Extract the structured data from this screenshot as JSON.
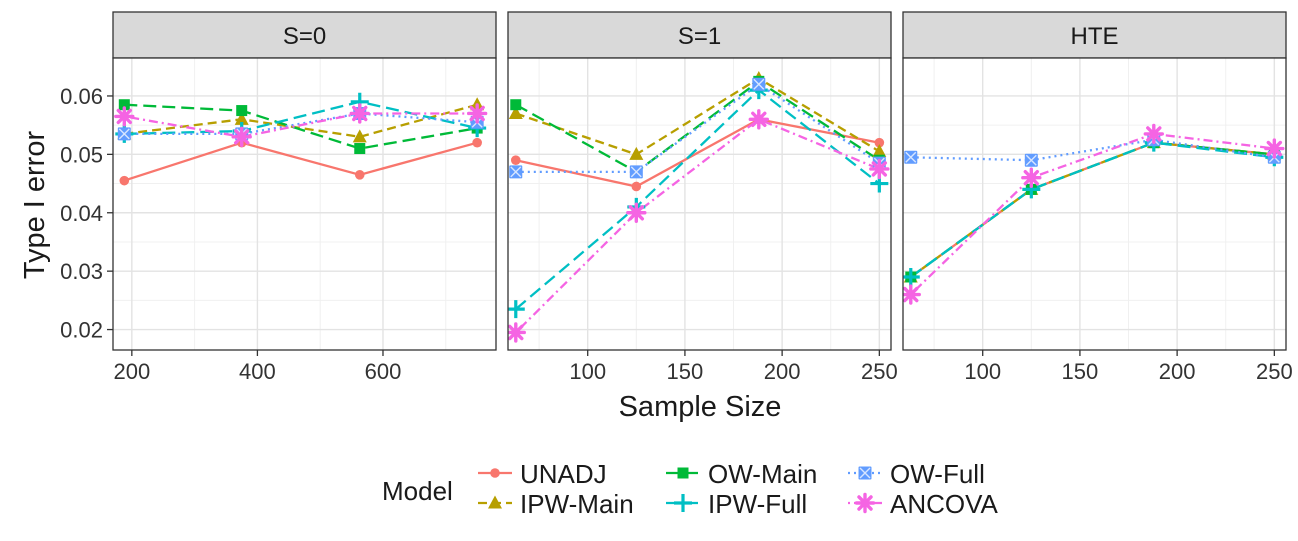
{
  "chart_data": {
    "type": "line",
    "xlabel": "Sample Size",
    "ylabel": "Type I error",
    "ylim": [
      0.0165,
      0.0665
    ],
    "yticks": [
      0.02,
      0.03,
      0.04,
      0.05,
      0.06
    ],
    "ytick_labels": [
      "0.02",
      "0.03",
      "0.04",
      "0.05",
      "0.06"
    ],
    "legend": {
      "title": "Model",
      "position": "bottom",
      "entries": [
        "UNADJ",
        "IPW-Main",
        "OW-Main",
        "IPW-Full",
        "OW-Full",
        "ANCOVA"
      ]
    },
    "series_styles": [
      {
        "name": "UNADJ",
        "color": "#F8766D",
        "dash": "solid",
        "shape": "circle"
      },
      {
        "name": "IPW-Main",
        "color": "#B79F00",
        "dash": "dashed",
        "shape": "triangle"
      },
      {
        "name": "OW-Main",
        "color": "#00BA38",
        "dash": "longdash",
        "shape": "square"
      },
      {
        "name": "IPW-Full",
        "color": "#00BFC4",
        "dash": "longdash",
        "shape": "plus"
      },
      {
        "name": "OW-Full",
        "color": "#619CFF",
        "dash": "dotted",
        "shape": "squarecross"
      },
      {
        "name": "ANCOVA",
        "color": "#F564E3",
        "dash": "dotdash",
        "shape": "asterisk"
      }
    ],
    "panels": [
      {
        "title": "S=0",
        "xlim": [
          170,
          780
        ],
        "xticks": [
          200,
          400,
          600
        ],
        "xtick_labels": [
          "200",
          "400",
          "600"
        ],
        "x": [
          188,
          375,
          563,
          750
        ],
        "series": [
          {
            "name": "UNADJ",
            "values": [
              0.0455,
              0.052,
              0.0465,
              0.052
            ]
          },
          {
            "name": "IPW-Main",
            "values": [
              0.0535,
              0.056,
              0.053,
              0.0585
            ]
          },
          {
            "name": "OW-Main",
            "values": [
              0.0585,
              0.0575,
              0.051,
              0.0545
            ]
          },
          {
            "name": "IPW-Full",
            "values": [
              0.0535,
              0.054,
              0.059,
              0.0545
            ]
          },
          {
            "name": "OW-Full",
            "values": [
              0.0535,
              0.0535,
              0.057,
              0.0555
            ]
          },
          {
            "name": "ANCOVA",
            "values": [
              0.0565,
              0.053,
              0.057,
              0.057
            ]
          }
        ]
      },
      {
        "title": "S=1",
        "xlim": [
          59,
          256
        ],
        "xticks": [
          100,
          150,
          200,
          250
        ],
        "xtick_labels": [
          "100",
          "150",
          "200",
          "250"
        ],
        "x": [
          63,
          125,
          188,
          250
        ],
        "series": [
          {
            "name": "UNADJ",
            "values": [
              0.049,
              0.0445,
              0.056,
              0.052
            ]
          },
          {
            "name": "IPW-Main",
            "values": [
              0.057,
              0.05,
              0.063,
              0.0505
            ]
          },
          {
            "name": "OW-Main",
            "values": [
              0.0585,
              0.047,
              0.0625,
              0.049
            ]
          },
          {
            "name": "IPW-Full",
            "values": [
              0.0235,
              0.041,
              0.061,
              0.045
            ]
          },
          {
            "name": "OW-Full",
            "values": [
              0.047,
              0.047,
              0.062,
              0.0485
            ]
          },
          {
            "name": "ANCOVA",
            "values": [
              0.0195,
              0.04,
              0.056,
              0.0475
            ]
          }
        ]
      },
      {
        "title": "HTE",
        "xlim": [
          59,
          256
        ],
        "xticks": [
          100,
          150,
          200,
          250
        ],
        "xtick_labels": [
          "100",
          "150",
          "200",
          "250"
        ],
        "x": [
          63,
          125,
          188,
          250
        ],
        "series": [
          {
            "name": "UNADJ",
            "values": [
              0.029,
              0.044,
              0.052,
              0.05
            ]
          },
          {
            "name": "IPW-Main",
            "values": [
              0.029,
              0.044,
              0.052,
              0.05
            ]
          },
          {
            "name": "OW-Main",
            "values": [
              0.029,
              0.044,
              0.052,
              0.05
            ]
          },
          {
            "name": "IPW-Full",
            "values": [
              0.029,
              0.044,
              0.052,
              0.0495
            ]
          },
          {
            "name": "OW-Full",
            "values": [
              0.0495,
              0.049,
              0.0525,
              0.0495
            ]
          },
          {
            "name": "ANCOVA",
            "values": [
              0.026,
              0.046,
              0.0535,
              0.051
            ]
          }
        ]
      }
    ]
  }
}
